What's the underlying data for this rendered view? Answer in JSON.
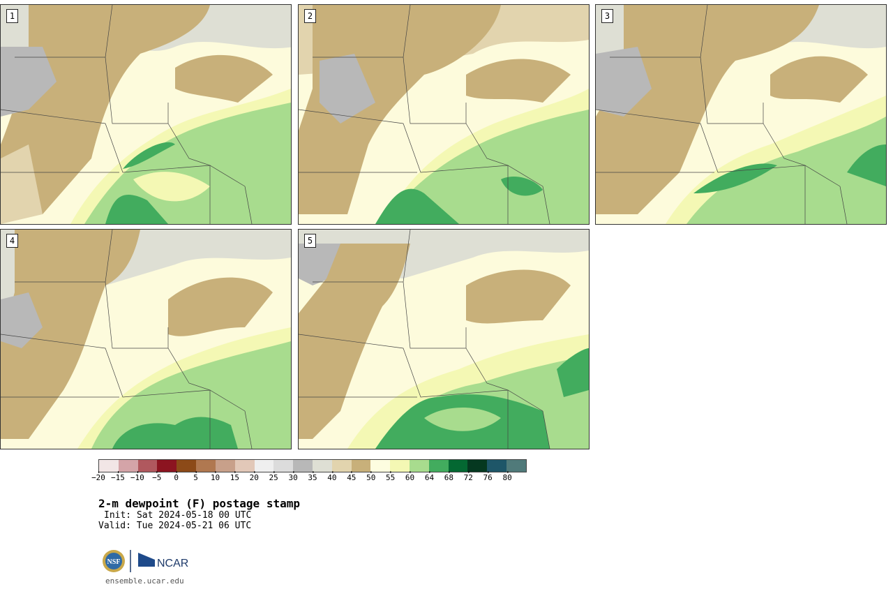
{
  "panels": [
    {
      "label": "1"
    },
    {
      "label": "2"
    },
    {
      "label": "3"
    },
    {
      "label": "4"
    },
    {
      "label": "5"
    }
  ],
  "colorbar": {
    "colors": [
      "#f2e6e6",
      "#d4a4a8",
      "#b0585e",
      "#8c1420",
      "#8c4a18",
      "#b07850",
      "#c8a08a",
      "#e2c8b8",
      "#efefef",
      "#dcdcdc",
      "#b8b8b8",
      "#dedfd4",
      "#e2d4ae",
      "#c8b07a",
      "#fdfde0",
      "#f4f8b4",
      "#a8dc8e",
      "#42ac5e",
      "#046832",
      "#053820",
      "#1e5668",
      "#507a7a"
    ],
    "ticks": [
      "−20",
      "−15",
      "−10",
      "−5",
      "0",
      "5",
      "10",
      "15",
      "20",
      "25",
      "30",
      "35",
      "40",
      "45",
      "50",
      "55",
      "60",
      "64",
      "68",
      "72",
      "76",
      "80"
    ]
  },
  "title": "2-m dewpoint (F) postage stamp",
  "init": "Init: Sat 2024-05-18 00 UTC",
  "valid": "Valid: Tue 2024-05-21 06 UTC",
  "logo": {
    "nsf_text": "NSF",
    "ncar_text": "NCAR"
  },
  "url": "ensemble.ucar.edu"
}
